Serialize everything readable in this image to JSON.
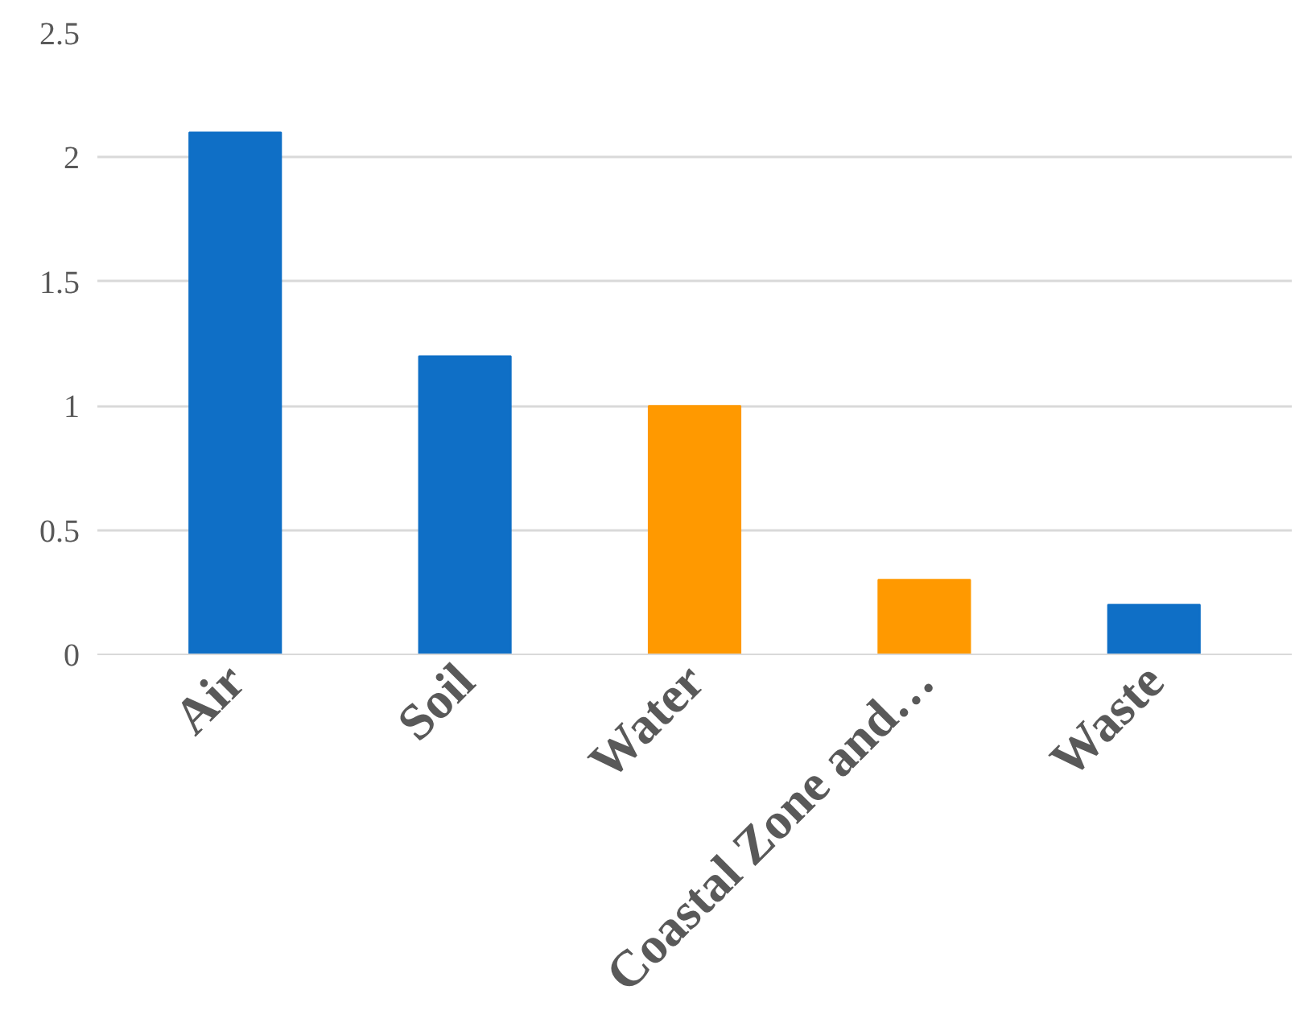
{
  "chart_data": {
    "type": "bar",
    "categories": [
      "Air",
      "Soil",
      "Water",
      "Coastal Zone and…",
      "Waste"
    ],
    "values": [
      2.1,
      1.2,
      1.0,
      0.3,
      0.2
    ],
    "colors": [
      "#0f6fc6",
      "#0f6fc6",
      "#ff9900",
      "#ff9900",
      "#0f6fc6"
    ],
    "ylim": [
      0,
      2.5
    ],
    "yticks": [
      0,
      0.5,
      1,
      1.5,
      2,
      2.5
    ],
    "grid": "y"
  }
}
